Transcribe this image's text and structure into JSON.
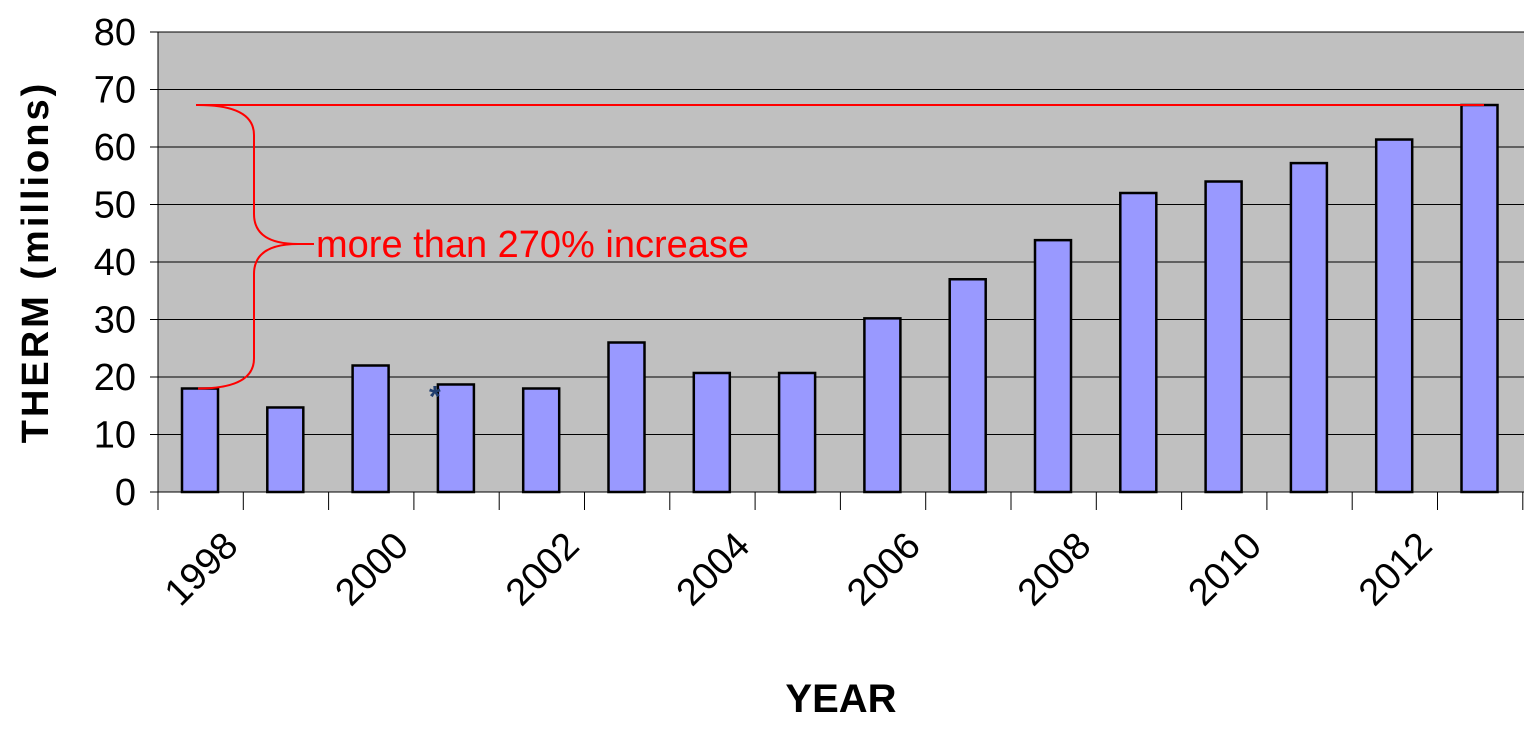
{
  "chart_data": {
    "type": "bar",
    "title": "",
    "xlabel": "YEAR",
    "ylabel": "THERM (millions)",
    "ylim": [
      0,
      80
    ],
    "yticks": [
      0,
      10,
      20,
      30,
      40,
      50,
      60,
      70,
      80
    ],
    "categories": [
      "1998",
      "1999",
      "2000",
      "2001",
      "2002",
      "2003",
      "2004",
      "2005",
      "2006",
      "2007",
      "2008",
      "2009",
      "2010",
      "2011",
      "2012",
      "2013"
    ],
    "x_tick_labels": [
      "1998",
      "",
      "2000",
      "",
      "2002",
      "",
      "2004",
      "",
      "2006",
      "",
      "2008",
      "",
      "2010",
      "",
      "2012",
      ""
    ],
    "values": [
      18,
      14.7,
      22,
      18.7,
      18,
      26,
      20.7,
      20.7,
      30.2,
      37,
      43.8,
      52,
      54,
      57.2,
      61.3,
      67.3
    ],
    "grid": true,
    "plot_background": "#c0c0c0",
    "bar_color": "#9999ff",
    "annotation": {
      "text": "more than 270% increase",
      "color": "#ff0000",
      "from_value": 18,
      "to_value": 67.3
    },
    "marker": {
      "text": "*",
      "category": "2001",
      "color": "#1f3d6e"
    }
  }
}
